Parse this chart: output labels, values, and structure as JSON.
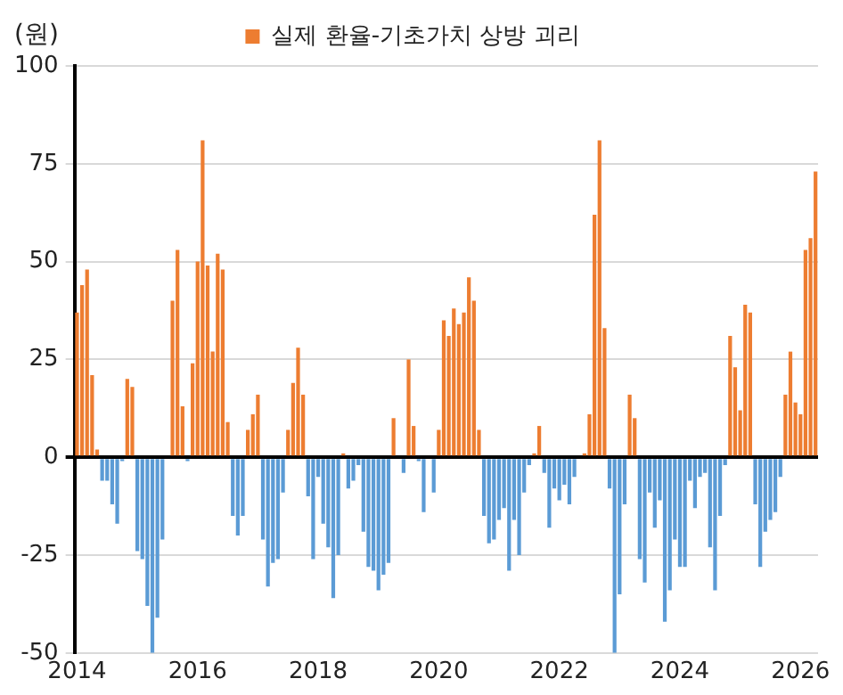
{
  "chart_data": {
    "type": "bar",
    "stacked": true,
    "ylabel": "(원)",
    "legend": "top",
    "grid": "y",
    "categories": [
      "2014",
      null,
      null,
      null,
      null,
      null,
      null,
      null,
      null,
      null,
      null,
      null,
      null,
      null,
      null,
      null,
      null,
      null,
      null,
      null,
      null,
      null,
      null,
      null,
      "2016",
      null,
      null,
      null,
      null,
      null,
      null,
      null,
      null,
      null,
      null,
      null,
      null,
      null,
      null,
      null,
      null,
      null,
      null,
      null,
      null,
      null,
      null,
      null,
      "2018",
      null,
      null,
      null,
      null,
      null,
      null,
      null,
      null,
      null,
      null,
      null,
      null,
      null,
      null,
      null,
      null,
      null,
      null,
      null,
      null,
      null,
      null,
      null,
      "2020",
      null,
      null,
      null,
      null,
      null,
      null,
      null,
      null,
      null,
      null,
      null,
      null,
      null,
      null,
      null,
      null,
      null,
      null,
      null,
      null,
      null,
      null,
      null,
      "2022",
      null,
      null,
      null,
      null,
      null,
      null,
      null,
      null,
      null,
      null,
      null,
      null,
      null,
      null,
      null,
      null,
      null,
      null,
      null,
      null,
      null,
      null,
      null,
      "2024",
      null,
      null,
      null,
      null,
      null,
      null,
      null,
      null,
      null,
      null,
      null,
      null,
      null,
      null,
      null,
      null,
      null,
      null,
      null,
      null,
      null,
      null,
      null,
      "2026",
      null,
      null,
      null
    ],
    "ylim": [
      -50,
      100
    ],
    "yticks": [
      -50,
      -25,
      0,
      25,
      50,
      75,
      100
    ],
    "series": [
      {
        "name": "실제 환율-기초가치 상방 괴리",
        "color": "#ed7d31",
        "values": [
          37,
          44,
          48,
          21,
          2,
          null,
          null,
          null,
          null,
          null,
          20,
          18,
          null,
          null,
          null,
          null,
          null,
          null,
          null,
          40,
          53,
          13,
          null,
          24,
          50,
          81,
          49,
          27,
          52,
          48,
          9,
          null,
          null,
          null,
          7,
          11,
          16,
          null,
          null,
          null,
          null,
          null,
          7,
          19,
          28,
          16,
          null,
          null,
          null,
          null,
          null,
          null,
          null,
          1,
          null,
          null,
          null,
          null,
          null,
          null,
          null,
          null,
          null,
          10,
          null,
          null,
          25,
          8,
          null,
          null,
          null,
          null,
          7,
          35,
          31,
          38,
          34,
          37,
          46,
          40,
          7,
          null,
          null,
          null,
          null,
          null,
          null,
          null,
          null,
          null,
          null,
          1,
          8,
          null,
          null,
          null,
          null,
          null,
          null,
          null,
          null,
          1,
          11,
          62,
          81,
          33,
          null,
          null,
          null,
          null,
          16,
          10,
          null,
          null,
          null,
          null,
          null,
          null,
          null,
          null,
          null,
          null,
          null,
          null,
          null,
          null,
          null,
          null,
          null,
          null,
          31,
          23,
          12,
          39,
          37,
          null,
          null,
          null,
          null,
          null,
          null,
          16,
          27,
          14,
          11,
          53,
          56,
          73
        ]
      },
      {
        "color": "#5b9bd5",
        "values": [
          null,
          null,
          null,
          null,
          null,
          -6,
          -6,
          -12,
          -17,
          -1,
          null,
          null,
          -24,
          -26,
          -38,
          -50,
          -41,
          -21,
          null,
          null,
          null,
          null,
          -1,
          null,
          null,
          null,
          null,
          null,
          null,
          null,
          null,
          -15,
          -20,
          -15,
          null,
          null,
          null,
          -21,
          -33,
          -27,
          -26,
          -9,
          null,
          null,
          null,
          null,
          -10,
          -26,
          -5,
          -17,
          -23,
          -36,
          -25,
          null,
          -8,
          -6,
          -2,
          -19,
          -28,
          -29,
          -34,
          -30,
          -27,
          null,
          null,
          -4,
          null,
          null,
          -1,
          -14,
          null,
          -9,
          null,
          null,
          null,
          null,
          null,
          null,
          null,
          null,
          null,
          -15,
          -22,
          -21,
          -16,
          -13,
          -29,
          -16,
          -25,
          -9,
          -2,
          null,
          null,
          -4,
          -18,
          -8,
          -11,
          -7,
          -12,
          -5,
          null,
          null,
          null,
          null,
          null,
          null,
          -8,
          -50,
          -35,
          -12,
          null,
          null,
          -26,
          -32,
          -9,
          -18,
          -11,
          -42,
          -34,
          -21,
          -28,
          -28,
          -6,
          -13,
          -5,
          -4,
          -23,
          -34,
          -15,
          -2,
          null,
          null,
          null,
          null,
          null,
          -12,
          -28,
          -19,
          -16,
          -14,
          -5,
          null,
          null,
          null,
          null,
          null,
          null,
          null
        ]
      }
    ]
  }
}
